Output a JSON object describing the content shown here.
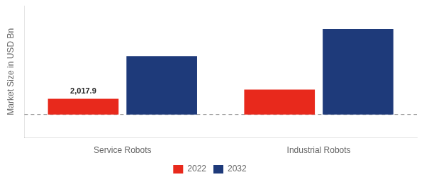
{
  "chart_data": {
    "type": "bar",
    "categories": [
      "Service Robots",
      "Industrial Robots"
    ],
    "series": [
      {
        "name": "2022",
        "color": "#e8291c",
        "values": [
          2017.9,
          3200
        ]
      },
      {
        "name": "2032",
        "color": "#1e3a7a",
        "values": [
          7500,
          11000
        ]
      }
    ],
    "ylabel": "Market Size in USD Bn",
    "ylim": [
      -3000,
      14000
    ],
    "tick_labels": "x",
    "grid": false,
    "legend": "bottom",
    "annotations": [
      {
        "text": "2,017.9",
        "series": "2022",
        "category": "Service Robots"
      }
    ],
    "reference_lines": [
      {
        "y": 0,
        "color": "#888888",
        "line_style": "dashed"
      }
    ]
  }
}
